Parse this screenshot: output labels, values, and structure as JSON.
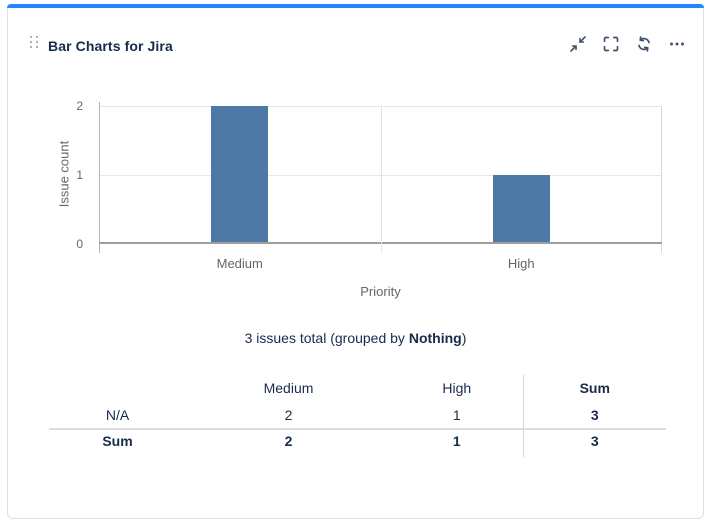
{
  "header": {
    "title": "Bar Charts for Jira",
    "icons": [
      {
        "name": "collapse-icon"
      },
      {
        "name": "fullscreen-icon"
      },
      {
        "name": "refresh-icon"
      },
      {
        "name": "more-icon"
      }
    ]
  },
  "chart_data": {
    "type": "bar",
    "title": "",
    "categories": [
      "Medium",
      "High"
    ],
    "values": [
      2,
      1
    ],
    "xlabel": "Priority",
    "ylabel": "Issue count",
    "yticks": [
      0,
      1,
      2
    ],
    "ylim": [
      0,
      2
    ],
    "bar_color": "#4e79a7",
    "grid": true,
    "legend": false
  },
  "summary": {
    "text_before": "3 issues total (grouped by ",
    "bold_text": "Nothing",
    "text_after": ")"
  },
  "table": {
    "headers": [
      "",
      "Medium",
      "High",
      "Sum"
    ],
    "rows": [
      {
        "cells": [
          "N/A",
          "2",
          "1",
          "3"
        ]
      },
      {
        "cells": [
          "Sum",
          "2",
          "1",
          "3"
        ]
      }
    ]
  },
  "colors": {
    "accent": "#2684FF",
    "bar": "#4e79a7",
    "title_text": "#172B4D",
    "chart_text": "#666666"
  }
}
